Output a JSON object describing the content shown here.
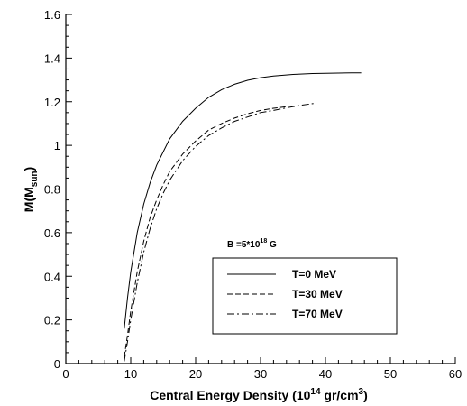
{
  "chart_data": {
    "type": "line",
    "title": "",
    "xlabel": {
      "main": "Central Energy Density (10",
      "sup": "14",
      "mid": " gr/cm",
      "sup2": "3",
      "end": ")"
    },
    "ylabel": {
      "main": "M(M",
      "sub": "sun",
      "end": ")"
    },
    "xlim": [
      0,
      60
    ],
    "ylim": [
      0,
      1.6
    ],
    "xticks": [
      0,
      10,
      20,
      30,
      40,
      50,
      60
    ],
    "yticks": [
      0,
      0.2,
      0.4,
      0.6,
      0.8,
      1,
      1.2,
      1.4,
      1.6
    ],
    "xtick_labels": [
      "0",
      "10",
      "20",
      "30",
      "40",
      "50",
      "60"
    ],
    "ytick_labels": [
      "0",
      "0.2",
      "0.4",
      "0.6",
      "0.8",
      "1",
      "1.2",
      "1.4",
      "1.6"
    ],
    "grid": false,
    "annotation": {
      "text_main": "B =5*10",
      "text_sup": "18",
      "text_end": " G"
    },
    "legend_position": "lower-right",
    "series": [
      {
        "name": "T=0 MeV",
        "style": "solid",
        "color": "#000000",
        "x": [
          9,
          9.5,
          10,
          11,
          12,
          13,
          14,
          15,
          16,
          18,
          20,
          22,
          24,
          26,
          28,
          30,
          32,
          35,
          38,
          41,
          44,
          45.5
        ],
        "y": [
          0.16,
          0.3,
          0.42,
          0.6,
          0.73,
          0.83,
          0.91,
          0.97,
          1.03,
          1.11,
          1.17,
          1.22,
          1.255,
          1.28,
          1.298,
          1.31,
          1.318,
          1.325,
          1.329,
          1.331,
          1.332,
          1.332
        ]
      },
      {
        "name": "T=30 MeV",
        "style": "dashed",
        "color": "#000000",
        "x": [
          9,
          9.5,
          10,
          11,
          12,
          13,
          14,
          15,
          16,
          18,
          20,
          22,
          24,
          26,
          28,
          30,
          32,
          34
        ],
        "y": [
          0.03,
          0.13,
          0.24,
          0.42,
          0.56,
          0.67,
          0.75,
          0.82,
          0.88,
          0.96,
          1.02,
          1.07,
          1.1,
          1.125,
          1.145,
          1.16,
          1.17,
          1.177
        ]
      },
      {
        "name": "T=70 MeV",
        "style": "dashdot",
        "color": "#000000",
        "x": [
          9,
          9.5,
          10,
          11,
          12,
          13,
          14,
          15,
          16,
          18,
          20,
          22,
          24,
          26,
          28,
          30,
          32,
          34,
          36,
          38.5
        ],
        "y": [
          0.01,
          0.1,
          0.2,
          0.37,
          0.51,
          0.62,
          0.71,
          0.78,
          0.84,
          0.93,
          0.995,
          1.045,
          1.08,
          1.11,
          1.13,
          1.15,
          1.16,
          1.172,
          1.183,
          1.193
        ]
      }
    ]
  }
}
